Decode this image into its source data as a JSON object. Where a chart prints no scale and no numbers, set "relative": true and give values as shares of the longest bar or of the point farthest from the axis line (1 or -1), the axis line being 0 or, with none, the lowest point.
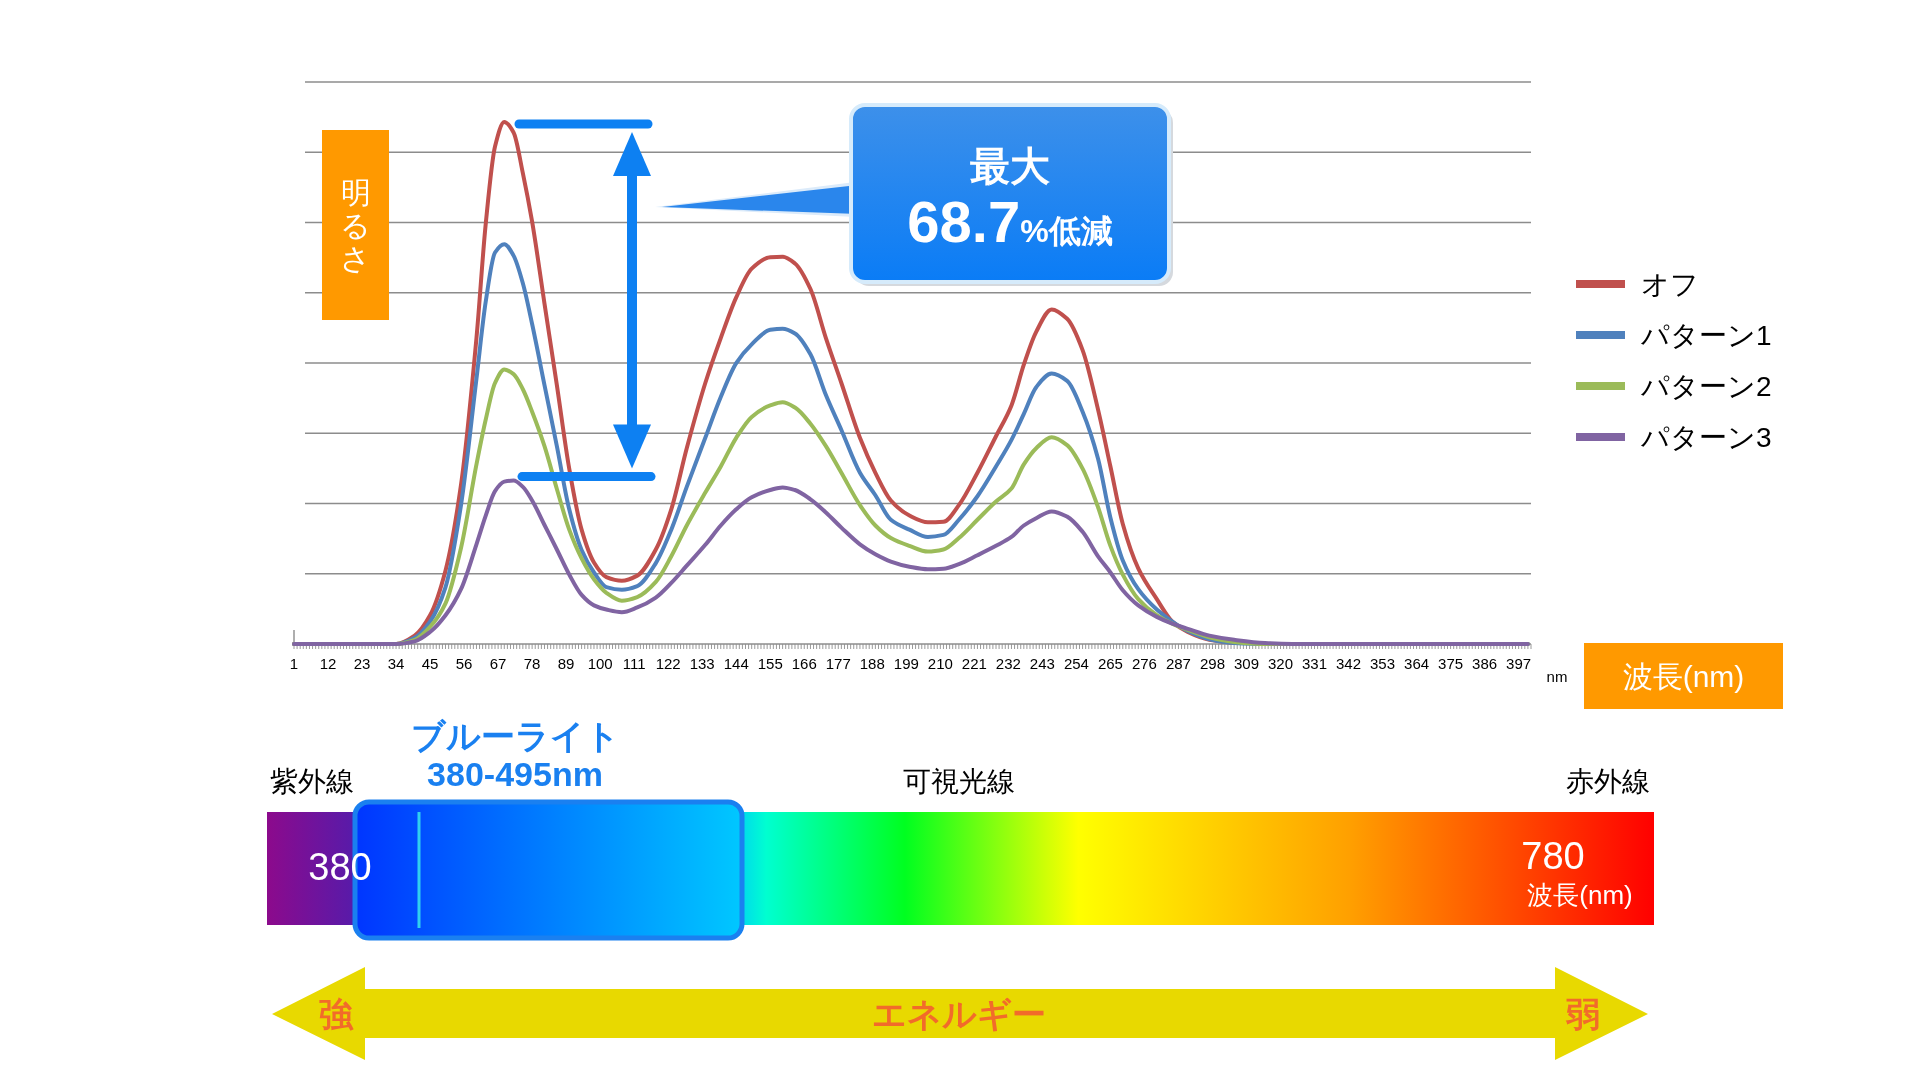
{
  "chart_data": [
    {
      "type": "line",
      "xlabel": "波長(nm)",
      "ylabel": "明るさ",
      "annotations": [
        "最大",
        "68.7%低減",
        "nm"
      ],
      "relative": true,
      "grid": "y",
      "legend": "right",
      "xlim": [
        1,
        401
      ],
      "xticks": [
        1,
        12,
        23,
        34,
        45,
        56,
        67,
        78,
        89,
        100,
        111,
        122,
        133,
        144,
        155,
        166,
        177,
        188,
        199,
        210,
        221,
        232,
        243,
        254,
        265,
        276,
        287,
        298,
        309,
        320,
        331,
        342,
        353,
        364,
        375,
        386,
        397
      ],
      "x": [
        1,
        34,
        40,
        45,
        50,
        55,
        60,
        63,
        66,
        69,
        72,
        75,
        78,
        82,
        86,
        90,
        94,
        98,
        102,
        107,
        112,
        118,
        123,
        128,
        134,
        139,
        144,
        149,
        155,
        159,
        163,
        168,
        173,
        178,
        184,
        189,
        194,
        200,
        206,
        211,
        216,
        222,
        228,
        233,
        237,
        241,
        246,
        251,
        256,
        261,
        265,
        269,
        274,
        280,
        285,
        290,
        297,
        305,
        315,
        330,
        400
      ],
      "series": [
        {
          "name": "オフ",
          "color": "#c0504d",
          "values": [
            0,
            0,
            0.016,
            0.055,
            0.141,
            0.305,
            0.586,
            0.805,
            0.953,
            1,
            0.98,
            0.902,
            0.809,
            0.652,
            0.496,
            0.336,
            0.219,
            0.156,
            0.128,
            0.121,
            0.131,
            0.181,
            0.258,
            0.375,
            0.5,
            0.586,
            0.664,
            0.719,
            0.741,
            0.742,
            0.729,
            0.68,
            0.586,
            0.5,
            0.395,
            0.328,
            0.275,
            0.246,
            0.233,
            0.234,
            0.266,
            0.328,
            0.398,
            0.457,
            0.535,
            0.598,
            0.641,
            0.623,
            0.563,
            0.449,
            0.34,
            0.23,
            0.145,
            0.086,
            0.043,
            0.023,
            0.008,
            0.002,
            null,
            null,
            null
          ]
        },
        {
          "name": "パターン1",
          "color": "#4f81bd",
          "values": [
            0,
            0,
            0.012,
            0.043,
            0.109,
            0.266,
            0.508,
            0.656,
            0.75,
            0.766,
            0.744,
            0.691,
            0.613,
            0.496,
            0.379,
            0.258,
            0.18,
            0.137,
            0.109,
            0.104,
            0.111,
            0.155,
            0.219,
            0.301,
            0.395,
            0.473,
            0.538,
            0.574,
            0.602,
            0.604,
            0.595,
            0.555,
            0.477,
            0.41,
            0.328,
            0.285,
            0.238,
            0.219,
            0.205,
            0.209,
            0.238,
            0.283,
            0.34,
            0.391,
            0.441,
            0.492,
            0.518,
            0.504,
            0.445,
            0.355,
            0.242,
            0.16,
            0.105,
            0.066,
            0.043,
            0.025,
            0.009,
            0.002,
            0,
            0,
            0
          ]
        },
        {
          "name": "パターン2",
          "color": "#9bbb59",
          "values": [
            0,
            0,
            0.008,
            0.033,
            0.078,
            0.184,
            0.344,
            0.43,
            0.5,
            0.526,
            0.517,
            0.488,
            0.445,
            0.379,
            0.297,
            0.219,
            0.164,
            0.124,
            0.098,
            0.083,
            0.09,
            0.119,
            0.168,
            0.227,
            0.29,
            0.34,
            0.395,
            0.435,
            0.457,
            0.463,
            0.453,
            0.422,
            0.379,
            0.328,
            0.266,
            0.227,
            0.203,
            0.188,
            0.177,
            0.181,
            0.203,
            0.238,
            0.273,
            0.298,
            0.344,
            0.375,
            0.396,
            0.381,
            0.336,
            0.262,
            0.188,
            0.133,
            0.086,
            0.055,
            0.039,
            0.027,
            0.013,
            0.004,
            0,
            0,
            0
          ]
        },
        {
          "name": "パターン3",
          "color": "#8064a2",
          "values": [
            0,
            0,
            0.005,
            0.023,
            0.055,
            0.105,
            0.191,
            0.246,
            0.293,
            0.311,
            0.313,
            0.301,
            0.275,
            0.228,
            0.181,
            0.133,
            0.094,
            0.074,
            0.066,
            0.061,
            0.07,
            0.089,
            0.117,
            0.15,
            0.19,
            0.227,
            0.258,
            0.281,
            0.295,
            0.3,
            0.295,
            0.277,
            0.252,
            0.223,
            0.191,
            0.172,
            0.158,
            0.148,
            0.143,
            0.144,
            0.153,
            0.17,
            0.188,
            0.205,
            0.227,
            0.241,
            0.254,
            0.244,
            0.215,
            0.168,
            0.137,
            0.103,
            0.074,
            0.052,
            0.039,
            0.029,
            0.016,
            0.008,
            0.002,
            0,
            0
          ]
        }
      ]
    },
    {
      "type": "other",
      "annotations": [
        "紫外線",
        "ブルーライト",
        "380-495nm",
        "可視光線",
        "赤外線",
        "380",
        "780",
        "波長(nm)",
        "強",
        "エネルギー",
        "弱"
      ]
    }
  ]
}
